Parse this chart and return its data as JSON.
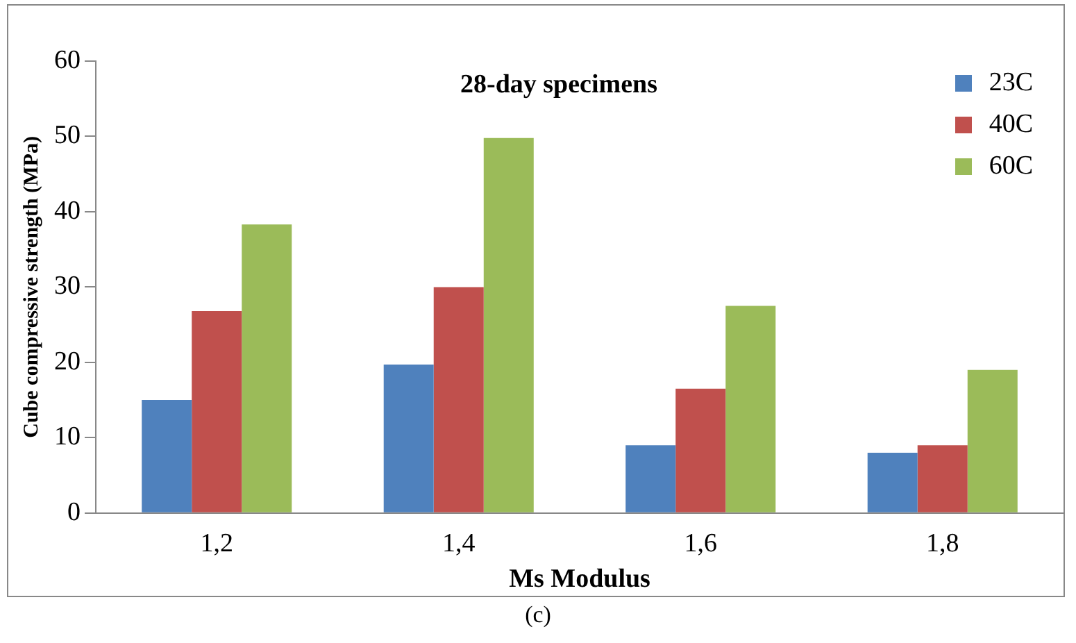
{
  "chart_data": {
    "type": "bar",
    "title": "28-day specimens",
    "xlabel": "Ms Modulus",
    "ylabel": "Cube compressive strength (MPa)",
    "categories": [
      "1,2",
      "1,4",
      "1,6",
      "1,8"
    ],
    "series": [
      {
        "name": "23C",
        "color": "#4f81bd",
        "values": [
          15,
          19.7,
          9,
          8
        ]
      },
      {
        "name": "40C",
        "color": "#c0504d",
        "values": [
          26.8,
          30,
          16.5,
          9
        ]
      },
      {
        "name": "60C",
        "color": "#9bbb59",
        "values": [
          38.3,
          49.8,
          27.5,
          19
        ]
      }
    ],
    "ylim": [
      0,
      60
    ],
    "yticks": [
      0,
      10,
      20,
      30,
      40,
      50,
      60
    ],
    "grid": false,
    "legend": "top right",
    "annotations": [
      "(c)"
    ]
  }
}
